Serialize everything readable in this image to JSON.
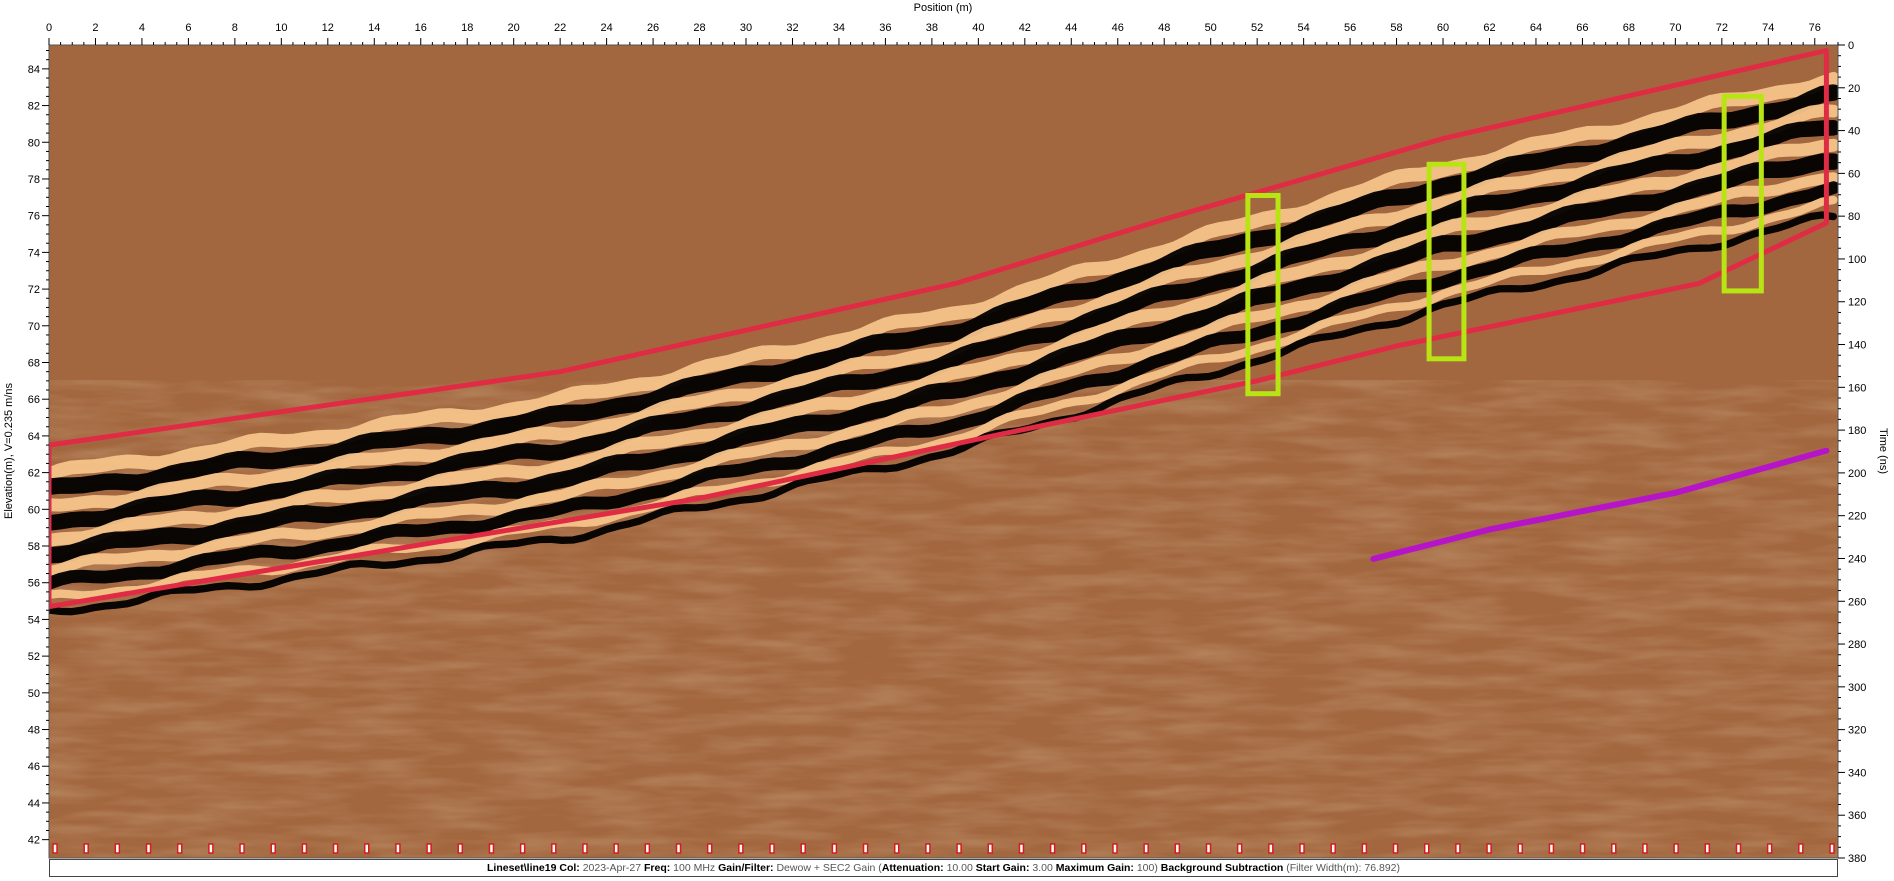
{
  "chart_data": {
    "type": "gpr-radargram",
    "x_axis": {
      "label": "Position (m)",
      "range": [
        0,
        77
      ],
      "ticks": [
        0,
        2,
        4,
        6,
        8,
        10,
        12,
        14,
        16,
        18,
        20,
        22,
        24,
        26,
        28,
        30,
        32,
        34,
        36,
        38,
        40,
        42,
        44,
        46,
        48,
        50,
        52,
        54,
        56,
        58,
        60,
        62,
        64,
        66,
        68,
        70,
        72,
        74,
        76
      ]
    },
    "y_left_axis": {
      "label": "Elevation(m), V=0.235 m/ns",
      "range": [
        41,
        85.3
      ],
      "ticks": [
        84,
        82,
        80,
        78,
        76,
        74,
        72,
        70,
        68,
        66,
        64,
        62,
        60,
        58,
        56,
        54,
        52,
        50,
        48,
        46,
        44,
        42
      ]
    },
    "y_right_axis": {
      "label": "Time (ns)",
      "range": [
        0,
        380
      ],
      "ticks": [
        0,
        20,
        40,
        60,
        80,
        100,
        120,
        140,
        160,
        180,
        200,
        220,
        240,
        260,
        280,
        300,
        320,
        340,
        360,
        380
      ]
    },
    "surface_line": [
      [
        0,
        63.5
      ],
      [
        22,
        67.5
      ],
      [
        39,
        72.3
      ],
      [
        48,
        75.8
      ],
      [
        60,
        80.2
      ],
      [
        76.5,
        85
      ]
    ],
    "series": [
      {
        "color": "#e02b45",
        "points": [
          [
            0,
            63.5
          ],
          [
            22,
            67.5
          ],
          [
            39,
            72.3
          ],
          [
            48,
            75.8
          ],
          [
            60,
            80.2
          ],
          [
            76.5,
            85
          ],
          [
            76.5,
            75.6
          ],
          [
            71,
            72.3
          ],
          [
            58,
            68.9
          ],
          [
            52,
            67
          ],
          [
            41,
            64.1
          ],
          [
            28,
            60.6
          ],
          [
            0,
            54.7
          ]
        ]
      },
      {
        "color": "#b614c8",
        "points": [
          [
            57,
            57.3
          ],
          [
            62,
            58.9
          ],
          [
            70,
            60.9
          ],
          [
            76.5,
            63.2
          ]
        ]
      }
    ],
    "annotations": [
      {
        "shape": "rect",
        "color": "#b9e414",
        "x_range": [
          51.6,
          52.9
        ],
        "elev_range": [
          66.3,
          77.1
        ]
      },
      {
        "shape": "rect",
        "color": "#b9e414",
        "x_range": [
          59.4,
          60.9
        ],
        "elev_range": [
          68.2,
          78.8
        ]
      },
      {
        "shape": "rect",
        "color": "#b9e414",
        "x_range": [
          72.1,
          73.7
        ],
        "elev_range": [
          71.9,
          82.5
        ]
      }
    ],
    "colors": {
      "background": "#a3673f",
      "positive_amplitude": "#f6c48a",
      "negative_amplitude": "#000000",
      "trace_markers": "#d41c1c"
    },
    "trace_markers_count": 58
  },
  "footer": {
    "lineset": "Lineset\\line19",
    "col_label": "Col:",
    "col_value": "2023-Apr-27",
    "freq_label": "Freq:",
    "freq_value": "100 MHz",
    "gain_label": "Gain/Filter:",
    "gain_value": "Dewow + SEC2 Gain (",
    "att_label": "Attenuation:",
    "att_value": "10.00",
    "start_label": "Start Gain:",
    "start_value": "3.00",
    "max_label": "Maximum Gain:",
    "max_value": "100)",
    "bg_label": "Background Subtraction",
    "bg_value": "(Filter Width(m): 76.892)"
  }
}
